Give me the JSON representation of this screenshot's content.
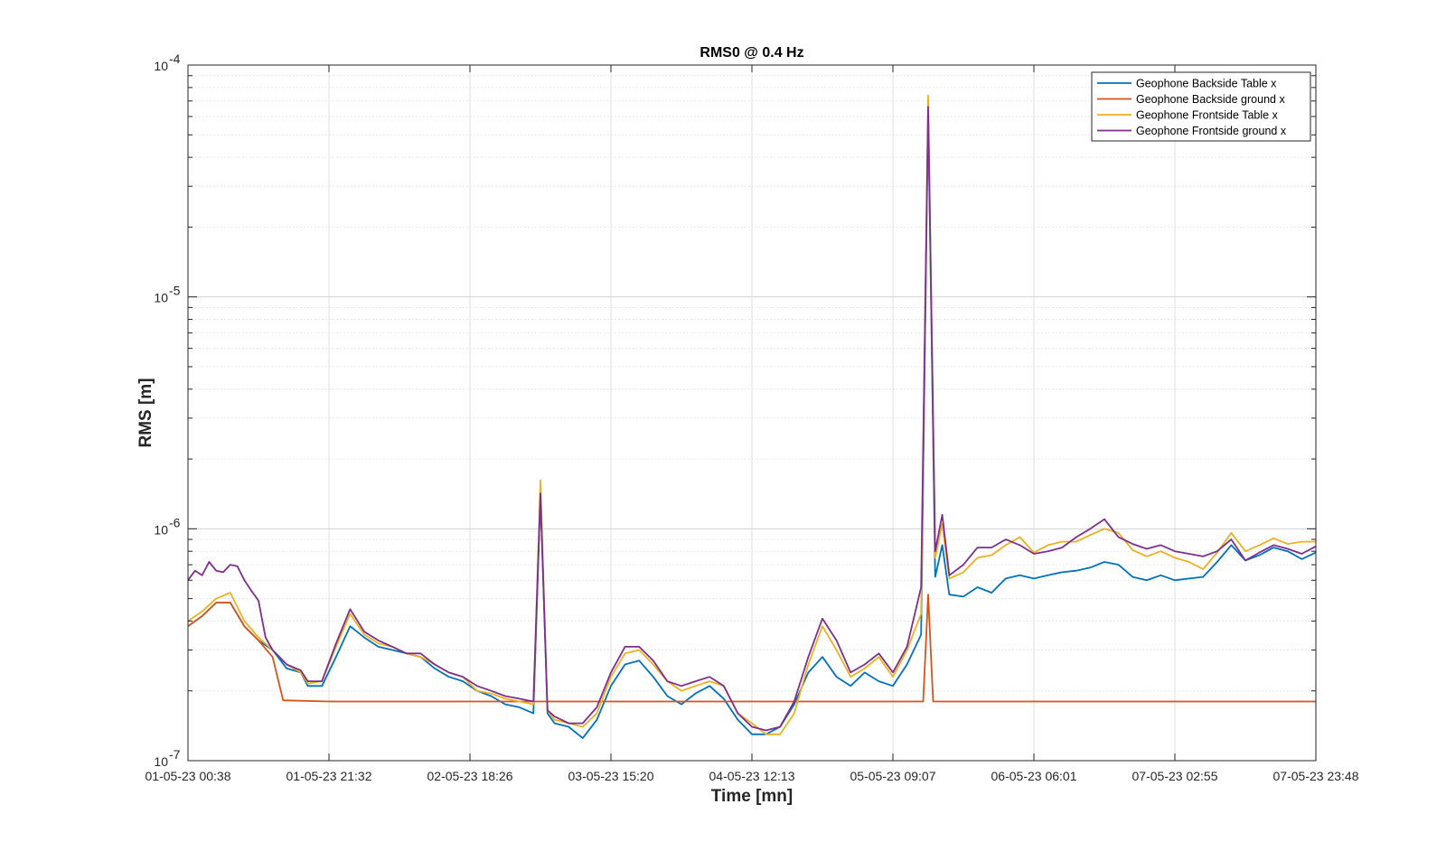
{
  "chart_data": {
    "type": "line",
    "title": "RMS0 @ 0.4 Hz",
    "xlabel": "Time [mn]",
    "ylabel": "RMS [m]",
    "yscale": "log",
    "ylim": [
      1e-07,
      0.0001
    ],
    "xlim": [
      0,
      160
    ],
    "grid": true,
    "legend_position": "top-right",
    "x_ticks": [
      {
        "x": 0,
        "label": "01-05-23 00:38"
      },
      {
        "x": 20,
        "label": "01-05-23 21:32"
      },
      {
        "x": 40,
        "label": "02-05-23 18:26"
      },
      {
        "x": 60,
        "label": "03-05-23 15:20"
      },
      {
        "x": 80,
        "label": "04-05-23 12:13"
      },
      {
        "x": 100,
        "label": "05-05-23 09:07"
      },
      {
        "x": 120,
        "label": "06-05-23 06:01"
      },
      {
        "x": 140,
        "label": "07-05-23 02:55"
      },
      {
        "x": 160,
        "label": "07-05-23 23:48"
      }
    ],
    "y_ticks": [
      {
        "y": 1e-07,
        "base": "10",
        "exp": "-7"
      },
      {
        "y": 1e-06,
        "base": "10",
        "exp": "-6"
      },
      {
        "y": 1e-05,
        "base": "10",
        "exp": "-5"
      },
      {
        "y": 0.0001,
        "base": "10",
        "exp": "-4"
      }
    ],
    "series": [
      {
        "name": "Geophone Backside Table x",
        "color": "#0072BD",
        "points": [
          [
            0,
            3.8e-07
          ],
          [
            2,
            4.2e-07
          ],
          [
            4,
            4.8e-07
          ],
          [
            6,
            4.8e-07
          ],
          [
            8,
            3.8e-07
          ],
          [
            10,
            3.3e-07
          ],
          [
            12,
            3e-07
          ],
          [
            14,
            2.5e-07
          ],
          [
            16,
            2.4e-07
          ],
          [
            17,
            2.1e-07
          ],
          [
            19,
            2.1e-07
          ],
          [
            21,
            2.8e-07
          ],
          [
            23,
            3.8e-07
          ],
          [
            25,
            3.4e-07
          ],
          [
            27,
            3.1e-07
          ],
          [
            29,
            3e-07
          ],
          [
            31,
            2.9e-07
          ],
          [
            33,
            2.8e-07
          ],
          [
            35,
            2.5e-07
          ],
          [
            37,
            2.3e-07
          ],
          [
            39,
            2.2e-07
          ],
          [
            41,
            2e-07
          ],
          [
            43,
            1.9e-07
          ],
          [
            45,
            1.75e-07
          ],
          [
            47,
            1.7e-07
          ],
          [
            49,
            1.6e-07
          ],
          [
            50,
            1.4e-06
          ],
          [
            51,
            1.6e-07
          ],
          [
            52,
            1.45e-07
          ],
          [
            54,
            1.4e-07
          ],
          [
            56,
            1.25e-07
          ],
          [
            58,
            1.5e-07
          ],
          [
            60,
            2.1e-07
          ],
          [
            62,
            2.6e-07
          ],
          [
            64,
            2.7e-07
          ],
          [
            66,
            2.3e-07
          ],
          [
            68,
            1.9e-07
          ],
          [
            70,
            1.75e-07
          ],
          [
            72,
            1.95e-07
          ],
          [
            74,
            2.1e-07
          ],
          [
            76,
            1.85e-07
          ],
          [
            78,
            1.5e-07
          ],
          [
            80,
            1.3e-07
          ],
          [
            82,
            1.3e-07
          ],
          [
            84,
            1.4e-07
          ],
          [
            86,
            1.75e-07
          ],
          [
            88,
            2.4e-07
          ],
          [
            90,
            2.8e-07
          ],
          [
            92,
            2.3e-07
          ],
          [
            94,
            2.1e-07
          ],
          [
            96,
            2.4e-07
          ],
          [
            98,
            2.2e-07
          ],
          [
            100,
            2.1e-07
          ],
          [
            102,
            2.6e-07
          ],
          [
            104,
            3.5e-07
          ],
          [
            105,
            6.5e-05
          ],
          [
            106,
            6.2e-07
          ],
          [
            107,
            8.5e-07
          ],
          [
            108,
            5.2e-07
          ],
          [
            110,
            5.1e-07
          ],
          [
            112,
            5.6e-07
          ],
          [
            114,
            5.3e-07
          ],
          [
            116,
            6.1e-07
          ],
          [
            118,
            6.3e-07
          ],
          [
            120,
            6.1e-07
          ],
          [
            122,
            6.3e-07
          ],
          [
            124,
            6.5e-07
          ],
          [
            126,
            6.6e-07
          ],
          [
            128,
            6.8e-07
          ],
          [
            130,
            7.2e-07
          ],
          [
            132,
            7e-07
          ],
          [
            134,
            6.2e-07
          ],
          [
            136,
            6e-07
          ],
          [
            138,
            6.3e-07
          ],
          [
            140,
            6e-07
          ],
          [
            142,
            6.1e-07
          ],
          [
            144,
            6.2e-07
          ],
          [
            146,
            7.2e-07
          ],
          [
            148,
            8.5e-07
          ],
          [
            150,
            7.3e-07
          ],
          [
            152,
            7.7e-07
          ],
          [
            154,
            8.3e-07
          ],
          [
            156,
            8e-07
          ],
          [
            158,
            7.4e-07
          ],
          [
            160,
            7.9e-07
          ]
        ]
      },
      {
        "name": "Geophone Backside ground x",
        "color": "#D95319",
        "points": [
          [
            0,
            3.8e-07
          ],
          [
            2,
            4.2e-07
          ],
          [
            4,
            4.8e-07
          ],
          [
            6,
            4.8e-07
          ],
          [
            8,
            3.8e-07
          ],
          [
            10,
            3.3e-07
          ],
          [
            12,
            2.8e-07
          ],
          [
            13.5,
            1.82e-07
          ],
          [
            20,
            1.8e-07
          ],
          [
            40,
            1.8e-07
          ],
          [
            60,
            1.8e-07
          ],
          [
            80,
            1.8e-07
          ],
          [
            100,
            1.8e-07
          ],
          [
            104.3,
            1.8e-07
          ],
          [
            105,
            5.2e-07
          ],
          [
            105.7,
            1.8e-07
          ],
          [
            120,
            1.8e-07
          ],
          [
            140,
            1.8e-07
          ],
          [
            160,
            1.8e-07
          ]
        ]
      },
      {
        "name": "Geophone Frontside Table x",
        "color": "#EDB120",
        "points": [
          [
            0,
            4e-07
          ],
          [
            2,
            4.4e-07
          ],
          [
            4,
            5e-07
          ],
          [
            6,
            5.3e-07
          ],
          [
            8,
            4e-07
          ],
          [
            10,
            3.4e-07
          ],
          [
            12,
            3e-07
          ],
          [
            14,
            2.6e-07
          ],
          [
            16,
            2.4e-07
          ],
          [
            17,
            2.15e-07
          ],
          [
            19,
            2.2e-07
          ],
          [
            21,
            3.1e-07
          ],
          [
            23,
            4.3e-07
          ],
          [
            25,
            3.5e-07
          ],
          [
            27,
            3.2e-07
          ],
          [
            29,
            3.1e-07
          ],
          [
            31,
            2.9e-07
          ],
          [
            33,
            2.8e-07
          ],
          [
            35,
            2.6e-07
          ],
          [
            37,
            2.4e-07
          ],
          [
            39,
            2.3e-07
          ],
          [
            41,
            2e-07
          ],
          [
            43,
            1.95e-07
          ],
          [
            45,
            1.85e-07
          ],
          [
            47,
            1.8e-07
          ],
          [
            49,
            1.75e-07
          ],
          [
            50,
            1.62e-06
          ],
          [
            51,
            1.65e-07
          ],
          [
            52,
            1.5e-07
          ],
          [
            54,
            1.45e-07
          ],
          [
            56,
            1.4e-07
          ],
          [
            58,
            1.6e-07
          ],
          [
            60,
            2.3e-07
          ],
          [
            62,
            2.9e-07
          ],
          [
            64,
            3e-07
          ],
          [
            66,
            2.6e-07
          ],
          [
            68,
            2.2e-07
          ],
          [
            70,
            2e-07
          ],
          [
            72,
            2.1e-07
          ],
          [
            74,
            2.2e-07
          ],
          [
            76,
            2.1e-07
          ],
          [
            78,
            1.6e-07
          ],
          [
            80,
            1.45e-07
          ],
          [
            82,
            1.3e-07
          ],
          [
            84,
            1.3e-07
          ],
          [
            86,
            1.6e-07
          ],
          [
            88,
            2.6e-07
          ],
          [
            90,
            3.8e-07
          ],
          [
            92,
            3e-07
          ],
          [
            94,
            2.3e-07
          ],
          [
            96,
            2.5e-07
          ],
          [
            98,
            2.8e-07
          ],
          [
            100,
            2.3e-07
          ],
          [
            102,
            3e-07
          ],
          [
            104,
            4.3e-07
          ],
          [
            105,
            7.4e-05
          ],
          [
            106,
            7.5e-07
          ],
          [
            107,
            1.05e-06
          ],
          [
            108,
            6.1e-07
          ],
          [
            110,
            6.5e-07
          ],
          [
            112,
            7.5e-07
          ],
          [
            114,
            7.7e-07
          ],
          [
            116,
            8.5e-07
          ],
          [
            118,
            9.2e-07
          ],
          [
            120,
            7.9e-07
          ],
          [
            122,
            8.5e-07
          ],
          [
            124,
            8.8e-07
          ],
          [
            126,
            8.8e-07
          ],
          [
            128,
            9.4e-07
          ],
          [
            130,
            1e-06
          ],
          [
            132,
            9.6e-07
          ],
          [
            134,
            8.1e-07
          ],
          [
            136,
            7.6e-07
          ],
          [
            138,
            8e-07
          ],
          [
            140,
            7.5e-07
          ],
          [
            142,
            7.2e-07
          ],
          [
            144,
            6.7e-07
          ],
          [
            146,
            7.9e-07
          ],
          [
            148,
            9.6e-07
          ],
          [
            150,
            8e-07
          ],
          [
            152,
            8.5e-07
          ],
          [
            154,
            9.1e-07
          ],
          [
            156,
            8.6e-07
          ],
          [
            158,
            8.8e-07
          ],
          [
            160,
            8.8e-07
          ]
        ]
      },
      {
        "name": "Geophone Frontside ground x",
        "color": "#7E2F8E",
        "points": [
          [
            0,
            6e-07
          ],
          [
            1,
            6.6e-07
          ],
          [
            2,
            6.3e-07
          ],
          [
            3,
            7.2e-07
          ],
          [
            4,
            6.6e-07
          ],
          [
            5,
            6.5e-07
          ],
          [
            6,
            7e-07
          ],
          [
            7,
            6.9e-07
          ],
          [
            8,
            6e-07
          ],
          [
            9,
            5.4e-07
          ],
          [
            10,
            4.9e-07
          ],
          [
            11,
            3.4e-07
          ],
          [
            12,
            3e-07
          ],
          [
            14,
            2.6e-07
          ],
          [
            16,
            2.45e-07
          ],
          [
            17,
            2.2e-07
          ],
          [
            19,
            2.2e-07
          ],
          [
            21,
            3.2e-07
          ],
          [
            23,
            4.5e-07
          ],
          [
            25,
            3.6e-07
          ],
          [
            27,
            3.3e-07
          ],
          [
            29,
            3.1e-07
          ],
          [
            31,
            2.9e-07
          ],
          [
            33,
            2.9e-07
          ],
          [
            35,
            2.6e-07
          ],
          [
            37,
            2.4e-07
          ],
          [
            39,
            2.3e-07
          ],
          [
            41,
            2.1e-07
          ],
          [
            43,
            2e-07
          ],
          [
            45,
            1.9e-07
          ],
          [
            47,
            1.85e-07
          ],
          [
            49,
            1.8e-07
          ],
          [
            50,
            1.42e-06
          ],
          [
            51,
            1.65e-07
          ],
          [
            52,
            1.55e-07
          ],
          [
            54,
            1.45e-07
          ],
          [
            56,
            1.45e-07
          ],
          [
            58,
            1.7e-07
          ],
          [
            60,
            2.4e-07
          ],
          [
            62,
            3.1e-07
          ],
          [
            64,
            3.1e-07
          ],
          [
            66,
            2.7e-07
          ],
          [
            68,
            2.2e-07
          ],
          [
            70,
            2.1e-07
          ],
          [
            72,
            2.2e-07
          ],
          [
            74,
            2.3e-07
          ],
          [
            76,
            2.1e-07
          ],
          [
            78,
            1.6e-07
          ],
          [
            80,
            1.4e-07
          ],
          [
            82,
            1.35e-07
          ],
          [
            84,
            1.4e-07
          ],
          [
            86,
            1.8e-07
          ],
          [
            88,
            2.8e-07
          ],
          [
            90,
            4.1e-07
          ],
          [
            92,
            3.3e-07
          ],
          [
            94,
            2.4e-07
          ],
          [
            96,
            2.6e-07
          ],
          [
            98,
            2.9e-07
          ],
          [
            100,
            2.4e-07
          ],
          [
            102,
            3.1e-07
          ],
          [
            104,
            5.6e-07
          ],
          [
            105,
            6.6e-05
          ],
          [
            106,
            8e-07
          ],
          [
            107,
            1.15e-06
          ],
          [
            108,
            6.3e-07
          ],
          [
            110,
            7e-07
          ],
          [
            112,
            8.3e-07
          ],
          [
            114,
            8.3e-07
          ],
          [
            116,
            9e-07
          ],
          [
            118,
            8.5e-07
          ],
          [
            120,
            7.8e-07
          ],
          [
            122,
            8e-07
          ],
          [
            124,
            8.3e-07
          ],
          [
            126,
            9.2e-07
          ],
          [
            128,
            1e-06
          ],
          [
            130,
            1.1e-06
          ],
          [
            132,
            9.2e-07
          ],
          [
            134,
            8.6e-07
          ],
          [
            136,
            8.2e-07
          ],
          [
            138,
            8.5e-07
          ],
          [
            140,
            8e-07
          ],
          [
            142,
            7.8e-07
          ],
          [
            144,
            7.6e-07
          ],
          [
            146,
            8e-07
          ],
          [
            148,
            9e-07
          ],
          [
            150,
            7.3e-07
          ],
          [
            152,
            7.9e-07
          ],
          [
            154,
            8.5e-07
          ],
          [
            156,
            8.2e-07
          ],
          [
            158,
            7.8e-07
          ],
          [
            160,
            8.4e-07
          ]
        ]
      }
    ]
  }
}
